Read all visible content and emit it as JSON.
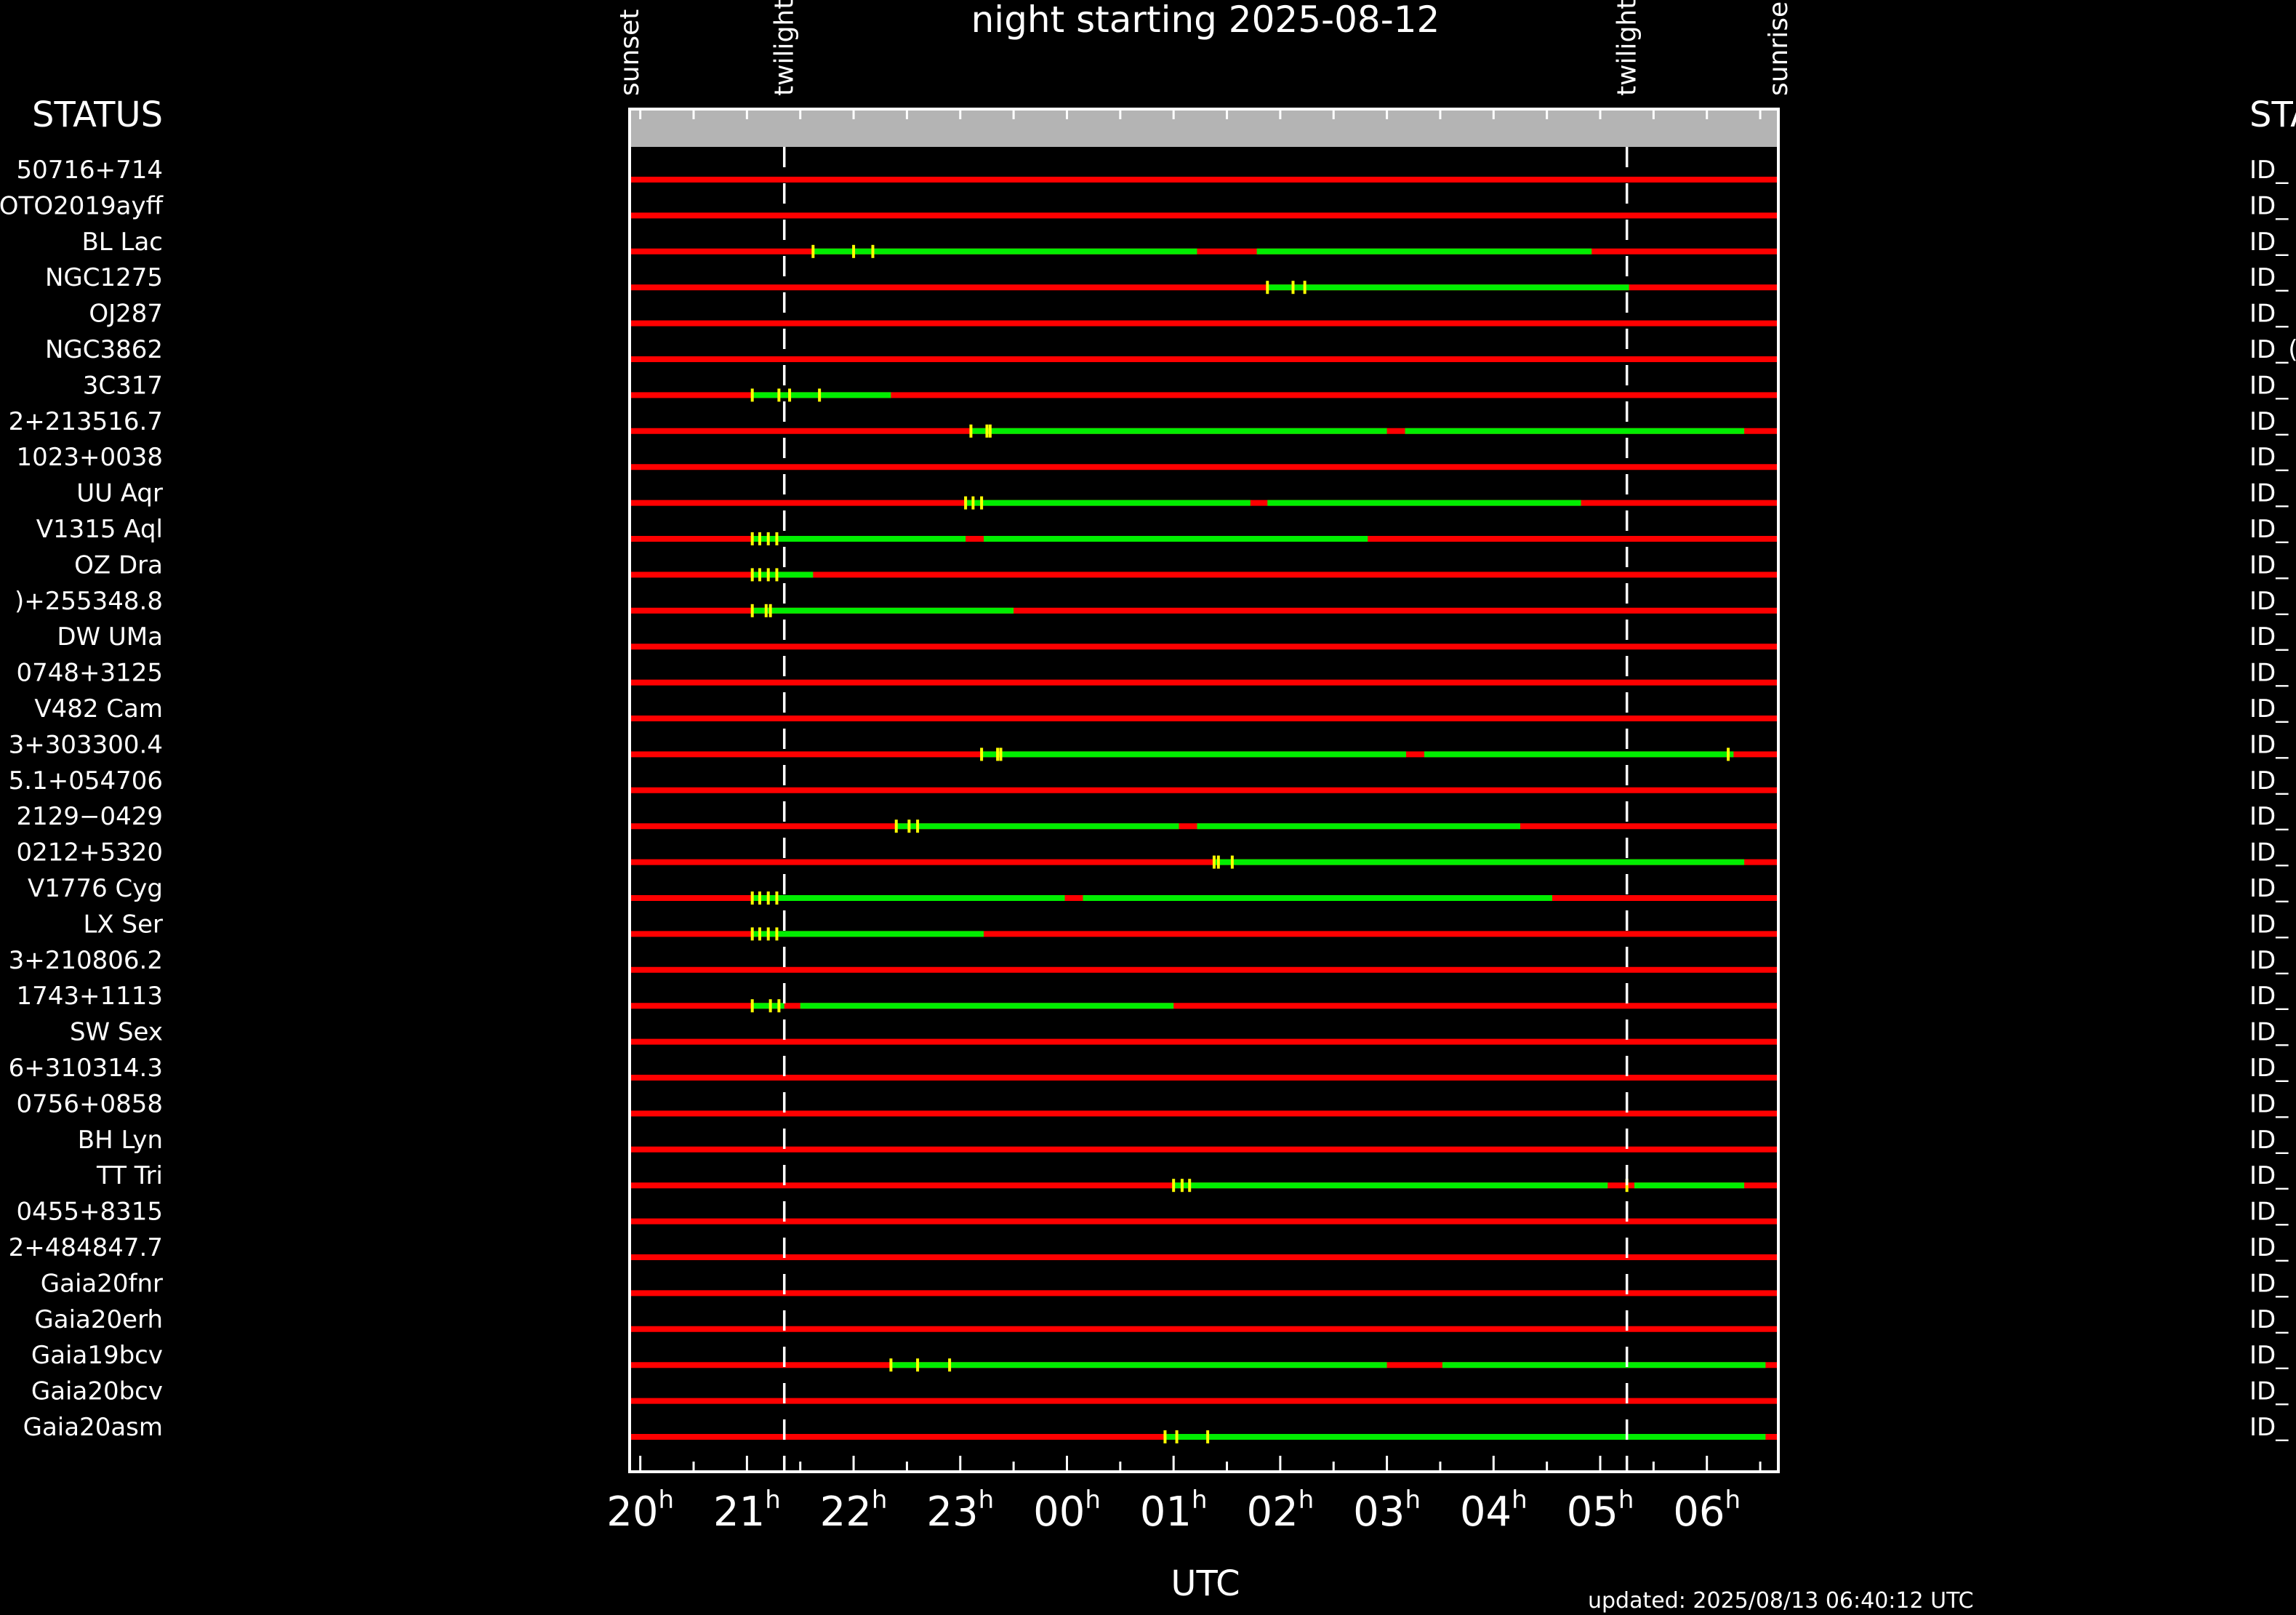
{
  "chart_data": {
    "type": "timeline",
    "title": "night starting 2025-08-12",
    "xlabel": "UTC",
    "updated": "updated: 2025/08/13 06:40:12 UTC",
    "left_header": "STATUS",
    "right_header": "STA",
    "x_range_hours": [
      19.9,
      30.67
    ],
    "x_ticks": [
      {
        "label": "20",
        "sup": "h",
        "hour": 20
      },
      {
        "label": "21",
        "sup": "h",
        "hour": 21
      },
      {
        "label": "22",
        "sup": "h",
        "hour": 22
      },
      {
        "label": "23",
        "sup": "h",
        "hour": 23
      },
      {
        "label": "00",
        "sup": "h",
        "hour": 24
      },
      {
        "label": "01",
        "sup": "h",
        "hour": 25
      },
      {
        "label": "02",
        "sup": "h",
        "hour": 26
      },
      {
        "label": "03",
        "sup": "h",
        "hour": 27
      },
      {
        "label": "04",
        "sup": "h",
        "hour": 28
      },
      {
        "label": "05",
        "sup": "h",
        "hour": 29
      },
      {
        "label": "06",
        "sup": "h",
        "hour": 30
      }
    ],
    "markers": [
      {
        "label": "sunset",
        "hour": 19.9,
        "dashed": false
      },
      {
        "label": "twilight",
        "hour": 21.35,
        "dashed": true
      },
      {
        "label": "twilight",
        "hour": 29.25,
        "dashed": true
      },
      {
        "label": "sunrise",
        "hour": 30.67,
        "dashed": false
      }
    ],
    "colors": {
      "not_observable": "#ff0000",
      "observable": "#00ee00",
      "tick_marks": "#ffff00",
      "frame": "#ffffff",
      "header_band": "#b4b4b4"
    },
    "targets": [
      {
        "name": "50716+714",
        "right": "ID_",
        "observable": [],
        "ticks": []
      },
      {
        "name": "OTO2019ayff",
        "right": "ID_",
        "observable": [],
        "ticks": []
      },
      {
        "name": "BL Lac",
        "right": "ID_",
        "observable": [
          [
            21.62,
            25.22
          ],
          [
            25.78,
            28.92
          ]
        ],
        "ticks": [
          21.62,
          22.0,
          22.18
        ]
      },
      {
        "name": "NGC1275",
        "right": "ID_",
        "observable": [
          [
            25.88,
            29.27
          ]
        ],
        "ticks": [
          25.88,
          26.12,
          26.23
        ]
      },
      {
        "name": "OJ287",
        "right": "ID_",
        "observable": [],
        "ticks": []
      },
      {
        "name": "NGC3862",
        "right": "ID_(",
        "observable": [],
        "ticks": []
      },
      {
        "name": "3C317",
        "right": "ID_",
        "observable": [
          [
            21.05,
            22.35
          ]
        ],
        "ticks": [
          21.05,
          21.3,
          21.4,
          21.68
        ]
      },
      {
        "name": "2+213516.7",
        "right": "ID_",
        "observable": [
          [
            23.1,
            27.0
          ],
          [
            27.17,
            30.35
          ]
        ],
        "ticks": [
          23.1,
          23.25,
          23.28
        ]
      },
      {
        "name": "1023+0038",
        "right": "ID_",
        "observable": [],
        "ticks": []
      },
      {
        "name": "UU Aqr",
        "right": "ID_",
        "observable": [
          [
            23.05,
            25.72
          ],
          [
            25.88,
            28.82
          ]
        ],
        "ticks": [
          23.05,
          23.12,
          23.2
        ]
      },
      {
        "name": "V1315 Aql",
        "right": "ID_",
        "observable": [
          [
            21.05,
            23.05
          ],
          [
            23.22,
            26.82
          ]
        ],
        "ticks": [
          21.05,
          21.12,
          21.2,
          21.28
        ]
      },
      {
        "name": "OZ Dra",
        "right": "ID_",
        "observable": [
          [
            21.05,
            21.62
          ]
        ],
        "ticks": [
          21.05,
          21.12,
          21.2,
          21.28
        ]
      },
      {
        "name": ")+255348.8",
        "right": "ID_",
        "observable": [
          [
            21.05,
            23.5
          ]
        ],
        "ticks": [
          21.05,
          21.18,
          21.22
        ]
      },
      {
        "name": "DW UMa",
        "right": "ID_",
        "observable": [],
        "ticks": []
      },
      {
        "name": "0748+3125",
        "right": "ID_",
        "observable": [],
        "ticks": []
      },
      {
        "name": "V482 Cam",
        "right": "ID_",
        "observable": [],
        "ticks": []
      },
      {
        "name": "3+303300.4",
        "right": "ID_",
        "observable": [
          [
            23.2,
            27.18
          ],
          [
            27.35,
            30.25
          ]
        ],
        "ticks": [
          23.2,
          23.35,
          23.38,
          30.2
        ]
      },
      {
        "name": "5.1+054706",
        "right": "ID_",
        "observable": [],
        "ticks": []
      },
      {
        "name": "2129−0429",
        "right": "ID_",
        "observable": [
          [
            22.4,
            25.05
          ],
          [
            25.22,
            28.25
          ]
        ],
        "ticks": [
          22.4,
          22.52,
          22.6
        ]
      },
      {
        "name": "0212+5320",
        "right": "ID_",
        "observable": [
          [
            25.38,
            30.35
          ]
        ],
        "ticks": [
          25.38,
          25.42,
          25.55
        ]
      },
      {
        "name": "V1776 Cyg",
        "right": "ID_",
        "observable": [
          [
            21.05,
            23.98
          ],
          [
            24.15,
            28.55
          ]
        ],
        "ticks": [
          21.05,
          21.12,
          21.2,
          21.28
        ]
      },
      {
        "name": "LX Ser",
        "right": "ID_",
        "observable": [
          [
            21.05,
            23.22
          ]
        ],
        "ticks": [
          21.05,
          21.12,
          21.2,
          21.28
        ]
      },
      {
        "name": "3+210806.2",
        "right": "ID_",
        "observable": [],
        "ticks": []
      },
      {
        "name": "1743+1113",
        "right": "ID_",
        "observable": [
          [
            21.05,
            21.35
          ],
          [
            21.5,
            25.0
          ]
        ],
        "ticks": [
          21.05,
          21.22,
          21.3
        ]
      },
      {
        "name": "SW Sex",
        "right": "ID_",
        "observable": [],
        "ticks": []
      },
      {
        "name": "6+310314.3",
        "right": "ID_",
        "observable": [],
        "ticks": []
      },
      {
        "name": "0756+0858",
        "right": "ID_",
        "observable": [],
        "ticks": []
      },
      {
        "name": "BH Lyn",
        "right": "ID_",
        "observable": [],
        "ticks": []
      },
      {
        "name": "TT Tri",
        "right": "ID_",
        "observable": [
          [
            25.0,
            29.07
          ],
          [
            29.32,
            30.35
          ]
        ],
        "ticks": [
          25.0,
          25.08,
          25.15,
          29.25
        ]
      },
      {
        "name": "0455+8315",
        "right": "ID_",
        "observable": [],
        "ticks": []
      },
      {
        "name": "2+484847.7",
        "right": "ID_",
        "observable": [],
        "ticks": []
      },
      {
        "name": "Gaia20fnr",
        "right": "ID_",
        "observable": [],
        "ticks": []
      },
      {
        "name": "Gaia20erh",
        "right": "ID_",
        "observable": [],
        "ticks": []
      },
      {
        "name": "Gaia19bcv",
        "right": "ID_",
        "observable": [
          [
            22.35,
            27.0
          ],
          [
            27.52,
            30.55
          ]
        ],
        "ticks": [
          22.35,
          22.6,
          22.9
        ]
      },
      {
        "name": "Gaia20bcv",
        "right": "ID_",
        "observable": [],
        "ticks": []
      },
      {
        "name": "Gaia20asm",
        "right": "ID_",
        "observable": [
          [
            24.92,
            30.55
          ]
        ],
        "ticks": [
          24.92,
          25.03,
          25.32
        ]
      }
    ]
  }
}
